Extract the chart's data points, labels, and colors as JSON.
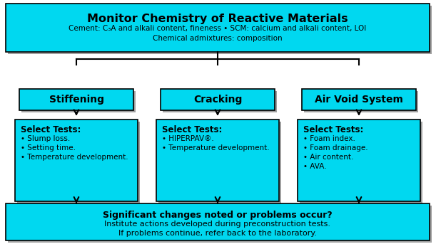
{
  "bg_color": "#ffffff",
  "box_color": "#00D8F0",
  "box_edge_color": "#000000",
  "shadow_color": "#a0a0a0",
  "title": "Monitor Chemistry of Reactive Materials",
  "subtitle_line1": "Cement: C₃A and alkali content, fineness • SCM: calcium and alkali content, LOI",
  "subtitle_line2": "Chemical admixtures: composition",
  "col1_header": "Stiffening",
  "col2_header": "Cracking",
  "col3_header": "Air Void System",
  "col1_tests_title": "Select Tests:",
  "col2_tests_title": "Select Tests:",
  "col3_tests_title": "Select Tests:",
  "col1_tests": [
    "• Slump loss.",
    "• Setting time.",
    "• Temperature development."
  ],
  "col2_tests": [
    "• HIPERPAV®.",
    "• Temperature development."
  ],
  "col3_tests": [
    "• Foam index.",
    "• Foam drainage.",
    "• Air content.",
    "• AVA."
  ],
  "bottom_line1": "Significant changes noted or problems occur?",
  "bottom_line2": "Institute actions developed during preconstruction tests.",
  "bottom_line3": "If problems continue, refer back to the laboratory."
}
